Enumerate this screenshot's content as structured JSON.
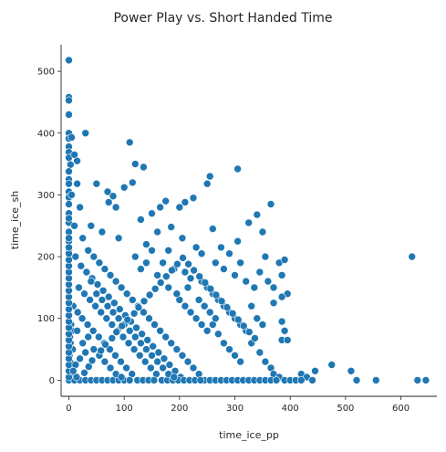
{
  "chart_data": {
    "type": "scatter",
    "title": "Power Play vs. Short Handed Time",
    "xlabel": "time_ice_pp",
    "ylabel": "time_ice_sh",
    "xlim": [
      -14,
      665
    ],
    "ylim": [
      -26,
      543
    ],
    "xticks": [
      0,
      100,
      200,
      300,
      400,
      500,
      600
    ],
    "yticks": [
      0,
      100,
      200,
      300,
      400,
      500
    ],
    "grid": false,
    "legend": "none",
    "point_color": "#1f77b4",
    "point_edge": "#ffffff",
    "points": [
      [
        0,
        518
      ],
      [
        0,
        458
      ],
      [
        0,
        453
      ],
      [
        0,
        430
      ],
      [
        0,
        400
      ],
      [
        0,
        391
      ],
      [
        5,
        393
      ],
      [
        0,
        378
      ],
      [
        0,
        369
      ],
      [
        0,
        360
      ],
      [
        3,
        349
      ],
      [
        10,
        365
      ],
      [
        15,
        355
      ],
      [
        30,
        400
      ],
      [
        0,
        338
      ],
      [
        0,
        325
      ],
      [
        0,
        318
      ],
      [
        0,
        305
      ],
      [
        0,
        296
      ],
      [
        0,
        285
      ],
      [
        0,
        270
      ],
      [
        0,
        255
      ],
      [
        0,
        240
      ],
      [
        0,
        225
      ],
      [
        0,
        210
      ],
      [
        5,
        300
      ],
      [
        15,
        318
      ],
      [
        50,
        318
      ],
      [
        70,
        305
      ],
      [
        72,
        288
      ],
      [
        80,
        298
      ],
      [
        85,
        280
      ],
      [
        110,
        385
      ],
      [
        115,
        320
      ],
      [
        120,
        350
      ],
      [
        135,
        345
      ],
      [
        100,
        312
      ],
      [
        150,
        270
      ],
      [
        165,
        280
      ],
      [
        175,
        290
      ],
      [
        185,
        248
      ],
      [
        200,
        280
      ],
      [
        210,
        288
      ],
      [
        225,
        295
      ],
      [
        250,
        318
      ],
      [
        255,
        330
      ],
      [
        305,
        342
      ],
      [
        260,
        245
      ],
      [
        275,
        215
      ],
      [
        290,
        205
      ],
      [
        305,
        225
      ],
      [
        325,
        255
      ],
      [
        340,
        268
      ],
      [
        350,
        240
      ],
      [
        365,
        285
      ],
      [
        380,
        190
      ],
      [
        385,
        170
      ],
      [
        390,
        195
      ],
      [
        395,
        140
      ],
      [
        385,
        135
      ],
      [
        370,
        125
      ],
      [
        385,
        95
      ],
      [
        390,
        80
      ],
      [
        385,
        65
      ],
      [
        395,
        65
      ],
      [
        420,
        10
      ],
      [
        430,
        5
      ],
      [
        445,
        15
      ],
      [
        475,
        25
      ],
      [
        510,
        15
      ],
      [
        520,
        0
      ],
      [
        555,
        0
      ],
      [
        620,
        200
      ],
      [
        630,
        0
      ],
      [
        645,
        0
      ],
      [
        20,
        280
      ],
      [
        40,
        250
      ],
      [
        60,
        240
      ],
      [
        90,
        230
      ],
      [
        130,
        260
      ],
      [
        140,
        220
      ],
      [
        160,
        240
      ],
      [
        180,
        210
      ],
      [
        205,
        230
      ],
      [
        230,
        215
      ],
      [
        240,
        205
      ],
      [
        265,
        190
      ],
      [
        280,
        180
      ],
      [
        300,
        170
      ],
      [
        310,
        190
      ],
      [
        320,
        160
      ],
      [
        335,
        150
      ],
      [
        345,
        175
      ],
      [
        355,
        200
      ],
      [
        360,
        160
      ],
      [
        370,
        150
      ],
      [
        330,
        120
      ],
      [
        340,
        100
      ],
      [
        350,
        90
      ],
      [
        320,
        80
      ],
      [
        330,
        60
      ],
      [
        345,
        45
      ],
      [
        355,
        30
      ],
      [
        365,
        20
      ],
      [
        370,
        10
      ],
      [
        380,
        5
      ],
      [
        390,
        0
      ],
      [
        400,
        0
      ],
      [
        410,
        0
      ],
      [
        420,
        0
      ],
      [
        440,
        0
      ],
      [
        10,
        250
      ],
      [
        25,
        230
      ],
      [
        35,
        210
      ],
      [
        45,
        200
      ],
      [
        55,
        190
      ],
      [
        65,
        180
      ],
      [
        75,
        170
      ],
      [
        85,
        160
      ],
      [
        95,
        150
      ],
      [
        105,
        140
      ],
      [
        115,
        130
      ],
      [
        125,
        120
      ],
      [
        135,
        110
      ],
      [
        145,
        100
      ],
      [
        155,
        90
      ],
      [
        165,
        80
      ],
      [
        175,
        70
      ],
      [
        185,
        60
      ],
      [
        195,
        50
      ],
      [
        205,
        40
      ],
      [
        215,
        30
      ],
      [
        225,
        20
      ],
      [
        235,
        10
      ],
      [
        245,
        0
      ],
      [
        255,
        0
      ],
      [
        265,
        0
      ],
      [
        275,
        0
      ],
      [
        285,
        0
      ],
      [
        295,
        0
      ],
      [
        305,
        0
      ],
      [
        315,
        0
      ],
      [
        325,
        0
      ],
      [
        335,
        0
      ],
      [
        345,
        0
      ],
      [
        355,
        0
      ],
      [
        365,
        0
      ],
      [
        375,
        0
      ],
      [
        12,
        200
      ],
      [
        22,
        185
      ],
      [
        32,
        175
      ],
      [
        42,
        165
      ],
      [
        52,
        155
      ],
      [
        62,
        145
      ],
      [
        72,
        135
      ],
      [
        82,
        125
      ],
      [
        92,
        115
      ],
      [
        102,
        105
      ],
      [
        112,
        95
      ],
      [
        122,
        85
      ],
      [
        132,
        75
      ],
      [
        142,
        65
      ],
      [
        152,
        55
      ],
      [
        162,
        45
      ],
      [
        172,
        35
      ],
      [
        182,
        25
      ],
      [
        192,
        15
      ],
      [
        202,
        5
      ],
      [
        18,
        150
      ],
      [
        28,
        140
      ],
      [
        38,
        130
      ],
      [
        48,
        120
      ],
      [
        58,
        110
      ],
      [
        68,
        100
      ],
      [
        78,
        90
      ],
      [
        88,
        80
      ],
      [
        98,
        70
      ],
      [
        108,
        60
      ],
      [
        118,
        50
      ],
      [
        128,
        40
      ],
      [
        138,
        30
      ],
      [
        148,
        20
      ],
      [
        158,
        10
      ],
      [
        168,
        0
      ],
      [
        178,
        0
      ],
      [
        188,
        0
      ],
      [
        198,
        0
      ],
      [
        208,
        0
      ],
      [
        218,
        0
      ],
      [
        228,
        0
      ],
      [
        238,
        0
      ],
      [
        8,
        120
      ],
      [
        16,
        110
      ],
      [
        24,
        100
      ],
      [
        34,
        90
      ],
      [
        44,
        80
      ],
      [
        54,
        70
      ],
      [
        64,
        60
      ],
      [
        74,
        50
      ],
      [
        84,
        40
      ],
      [
        94,
        30
      ],
      [
        104,
        20
      ],
      [
        114,
        10
      ],
      [
        124,
        0
      ],
      [
        134,
        0
      ],
      [
        144,
        0
      ],
      [
        154,
        0
      ],
      [
        4,
        90
      ],
      [
        6,
        80
      ],
      [
        2,
        70
      ],
      [
        3,
        60
      ],
      [
        7,
        50
      ],
      [
        1,
        40
      ],
      [
        2,
        30
      ],
      [
        5,
        20
      ],
      [
        3,
        10
      ],
      [
        0,
        0
      ],
      [
        10,
        0
      ],
      [
        20,
        0
      ],
      [
        30,
        0
      ],
      [
        40,
        0
      ],
      [
        50,
        0
      ],
      [
        60,
        0
      ],
      [
        70,
        0
      ],
      [
        80,
        0
      ],
      [
        90,
        0
      ],
      [
        100,
        0
      ],
      [
        110,
        0
      ],
      [
        0,
        5
      ],
      [
        0,
        15
      ],
      [
        0,
        25
      ],
      [
        0,
        35
      ],
      [
        0,
        45
      ],
      [
        0,
        55
      ],
      [
        0,
        65
      ],
      [
        0,
        75
      ],
      [
        0,
        85
      ],
      [
        0,
        95
      ],
      [
        0,
        105
      ],
      [
        0,
        115
      ],
      [
        0,
        125
      ],
      [
        0,
        135
      ],
      [
        0,
        145
      ],
      [
        0,
        155
      ],
      [
        0,
        165
      ],
      [
        0,
        175
      ],
      [
        0,
        185
      ],
      [
        0,
        195
      ],
      [
        0,
        205
      ],
      [
        0,
        215
      ],
      [
        0,
        230
      ],
      [
        0,
        262
      ],
      [
        150,
        210
      ],
      [
        170,
        190
      ],
      [
        190,
        180
      ],
      [
        210,
        175
      ],
      [
        220,
        165
      ],
      [
        240,
        160
      ],
      [
        250,
        150
      ],
      [
        260,
        140
      ],
      [
        270,
        130
      ],
      [
        280,
        120
      ],
      [
        290,
        110
      ],
      [
        300,
        100
      ],
      [
        310,
        90
      ],
      [
        260,
        90
      ],
      [
        270,
        75
      ],
      [
        280,
        60
      ],
      [
        290,
        50
      ],
      [
        300,
        40
      ],
      [
        310,
        30
      ],
      [
        200,
        130
      ],
      [
        210,
        120
      ],
      [
        220,
        110
      ],
      [
        230,
        100
      ],
      [
        240,
        90
      ],
      [
        250,
        80
      ],
      [
        130,
        180
      ],
      [
        120,
        200
      ],
      [
        140,
        190
      ],
      [
        160,
        170
      ],
      [
        180,
        150
      ],
      [
        195,
        140
      ],
      [
        215,
        150
      ],
      [
        235,
        130
      ],
      [
        245,
        120
      ],
      [
        255,
        110
      ],
      [
        265,
        100
      ],
      [
        40,
        160
      ],
      [
        50,
        140
      ],
      [
        60,
        130
      ],
      [
        70,
        120
      ],
      [
        80,
        110
      ],
      [
        90,
        100
      ],
      [
        100,
        90
      ],
      [
        110,
        80
      ],
      [
        120,
        70
      ],
      [
        130,
        60
      ],
      [
        140,
        50
      ],
      [
        150,
        40
      ],
      [
        160,
        30
      ],
      [
        170,
        20
      ],
      [
        180,
        10
      ],
      [
        190,
        5
      ],
      [
        45,
        50
      ],
      [
        55,
        40
      ],
      [
        65,
        30
      ],
      [
        75,
        20
      ],
      [
        85,
        10
      ],
      [
        95,
        5
      ],
      [
        25,
        60
      ],
      [
        35,
        70
      ],
      [
        15,
        80
      ],
      [
        30,
        45
      ],
      [
        20,
        35
      ],
      [
        12,
        25
      ],
      [
        8,
        15
      ],
      [
        14,
        5
      ],
      [
        28,
        12
      ],
      [
        36,
        22
      ],
      [
        42,
        32
      ],
      [
        58,
        48
      ],
      [
        66,
        58
      ],
      [
        78,
        68
      ],
      [
        86,
        78
      ],
      [
        96,
        88
      ],
      [
        106,
        98
      ],
      [
        118,
        108
      ],
      [
        126,
        118
      ],
      [
        136,
        128
      ],
      [
        146,
        138
      ],
      [
        156,
        148
      ],
      [
        166,
        158
      ],
      [
        176,
        168
      ],
      [
        186,
        178
      ],
      [
        196,
        188
      ],
      [
        206,
        198
      ],
      [
        216,
        188
      ],
      [
        226,
        178
      ],
      [
        236,
        168
      ],
      [
        246,
        158
      ],
      [
        256,
        148
      ],
      [
        266,
        138
      ],
      [
        276,
        128
      ],
      [
        286,
        118
      ],
      [
        296,
        108
      ],
      [
        306,
        98
      ],
      [
        316,
        88
      ],
      [
        326,
        78
      ],
      [
        336,
        68
      ]
    ]
  }
}
